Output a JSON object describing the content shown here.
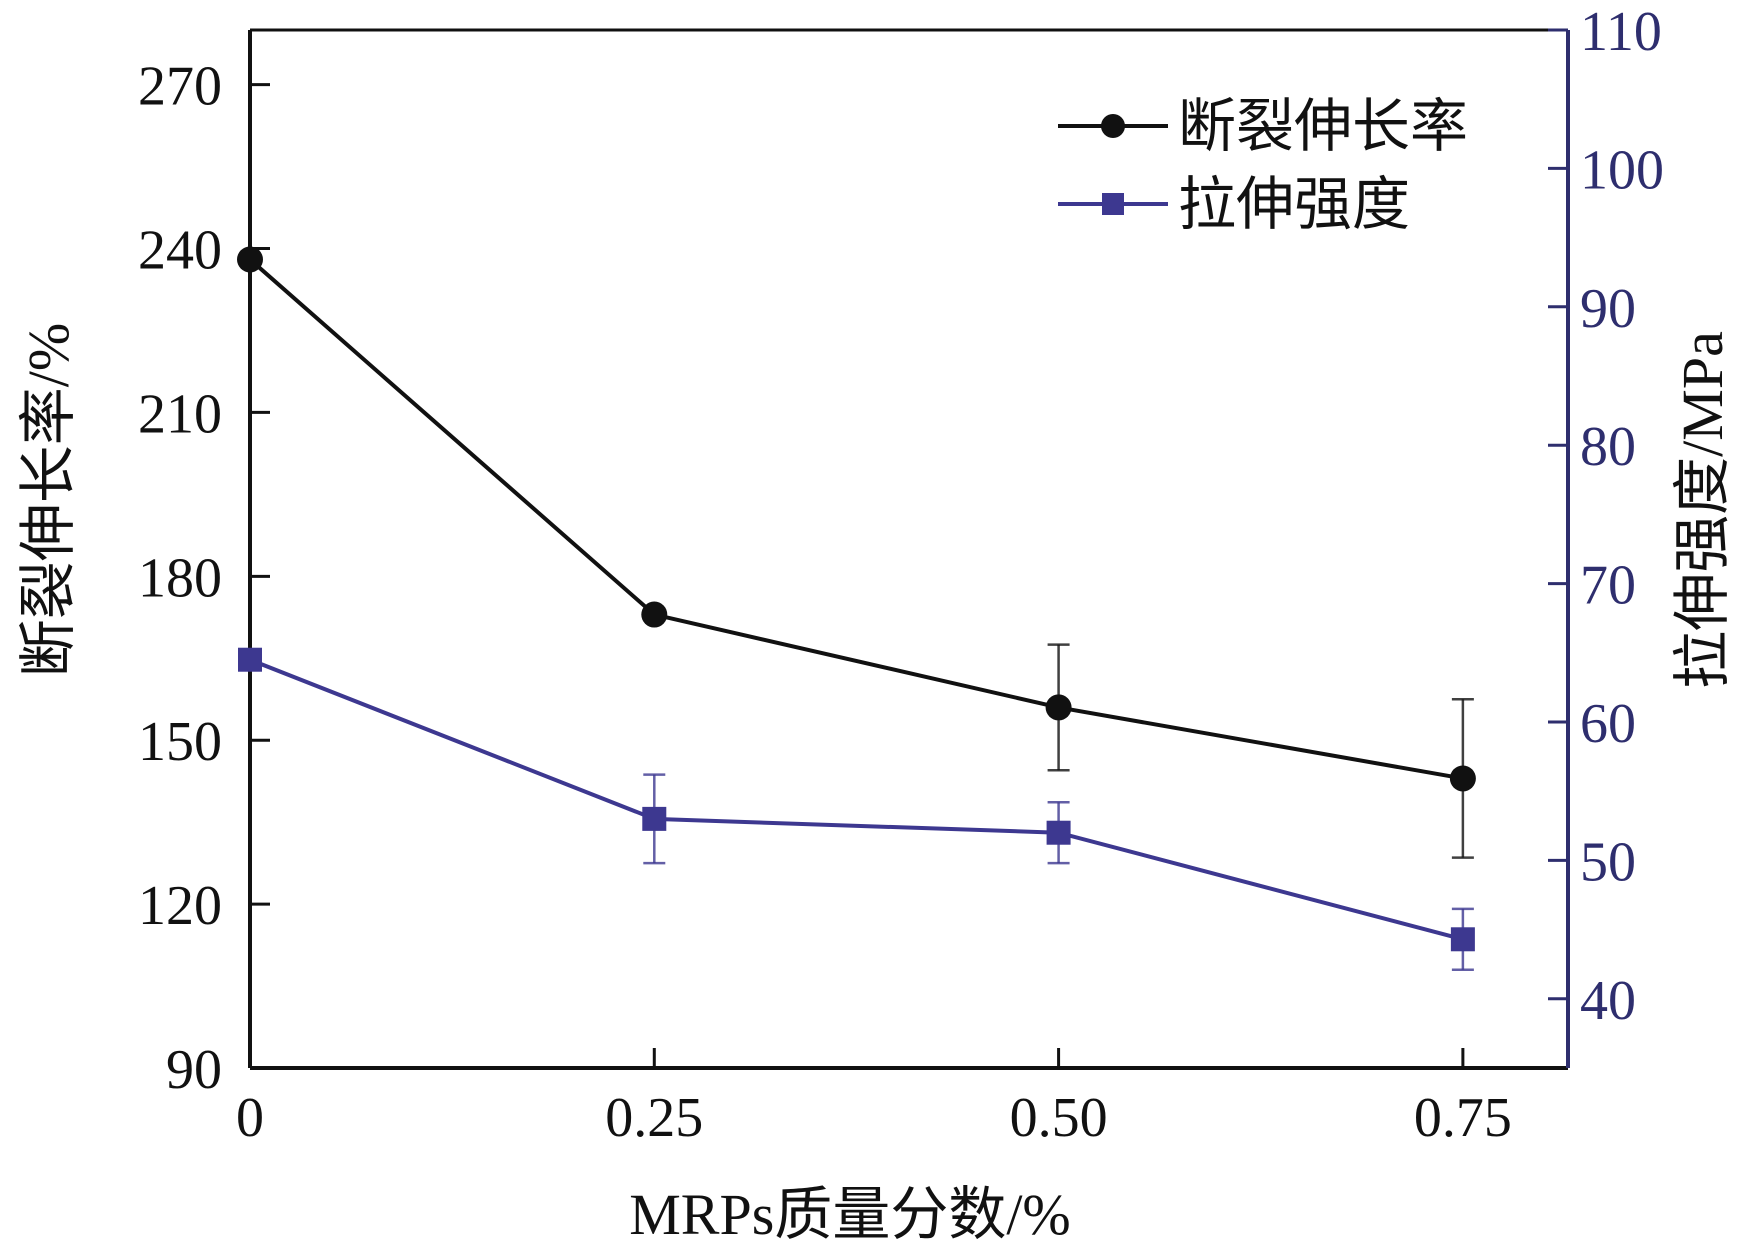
{
  "chart_data": {
    "type": "line",
    "xlabel": "MRPs质量分数/%",
    "ylabel_left": "断裂伸长率/%",
    "ylabel_right": "拉伸强度/MPa",
    "x": [
      0,
      0.25,
      0.5,
      0.75
    ],
    "x_tick_labels": [
      "0",
      "0.25",
      "0.50",
      "0.75"
    ],
    "xlim": [
      0,
      0.815
    ],
    "ylim_left": [
      90,
      280
    ],
    "ylim_right": [
      35,
      110
    ],
    "y_ticks_left": [
      90,
      120,
      150,
      180,
      210,
      240,
      270
    ],
    "y_ticks_right": [
      40,
      50,
      60,
      70,
      80,
      90,
      100,
      110
    ],
    "grid": false,
    "legend_position": "top-right",
    "series": [
      {
        "name": "断裂伸长率",
        "axis": "left",
        "color": "#111111",
        "marker": "circle",
        "values": [
          238,
          173,
          156,
          143
        ],
        "errors": [
          0,
          0,
          11.5,
          14.5
        ]
      },
      {
        "name": "拉伸强度",
        "axis": "right",
        "color": "#3d3890",
        "marker": "square",
        "values": [
          64.5,
          53,
          52,
          44.3
        ],
        "errors": [
          0,
          3.2,
          2.2,
          2.2
        ]
      }
    ]
  }
}
